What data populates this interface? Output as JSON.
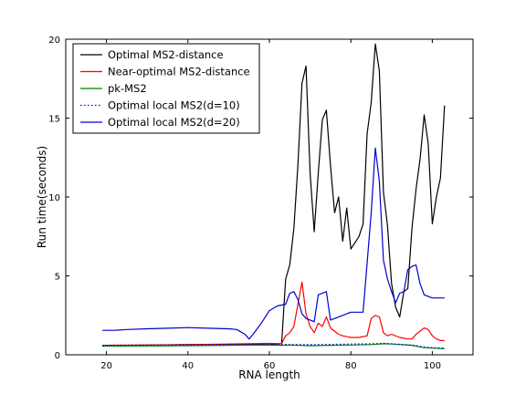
{
  "chart_data": {
    "type": "line",
    "xlabel": "RNA length",
    "ylabel": "Run time(seconds)",
    "xlim": [
      10,
      110
    ],
    "ylim": [
      0,
      20
    ],
    "xticks": [
      20,
      40,
      60,
      80,
      100
    ],
    "yticks": [
      0,
      5,
      10,
      15,
      20
    ],
    "grid": false,
    "legend_position": "top-left",
    "series": [
      {
        "name": "Optimal MS2-distance",
        "color": "#000000",
        "style": "solid",
        "points": [
          [
            19,
            0.55
          ],
          [
            25,
            0.6
          ],
          [
            30,
            0.62
          ],
          [
            40,
            0.65
          ],
          [
            50,
            0.65
          ],
          [
            55,
            0.66
          ],
          [
            60,
            0.65
          ],
          [
            63,
            0.7
          ],
          [
            64,
            4.8
          ],
          [
            65,
            5.7
          ],
          [
            66,
            8.0
          ],
          [
            67,
            12.0
          ],
          [
            68,
            17.2
          ],
          [
            69,
            18.3
          ],
          [
            70,
            11.5
          ],
          [
            71,
            7.8
          ],
          [
            72,
            11.5
          ],
          [
            73,
            14.9
          ],
          [
            74,
            15.5
          ],
          [
            75,
            12.0
          ],
          [
            76,
            9.0
          ],
          [
            77,
            10.0
          ],
          [
            78,
            7.2
          ],
          [
            79,
            9.3
          ],
          [
            80,
            6.7
          ],
          [
            82,
            7.5
          ],
          [
            83,
            8.3
          ],
          [
            84,
            14.0
          ],
          [
            85,
            16.0
          ],
          [
            86,
            19.7
          ],
          [
            87,
            18.0
          ],
          [
            88,
            10.3
          ],
          [
            89,
            8.2
          ],
          [
            90,
            4.5
          ],
          [
            91,
            3.0
          ],
          [
            92,
            2.4
          ],
          [
            93,
            4.0
          ],
          [
            94,
            4.2
          ],
          [
            95,
            8.0
          ],
          [
            96,
            10.5
          ],
          [
            97,
            12.4
          ],
          [
            98,
            15.2
          ],
          [
            99,
            13.4
          ],
          [
            100,
            8.3
          ],
          [
            101,
            10.0
          ],
          [
            102,
            11.2
          ],
          [
            103,
            15.8
          ]
        ]
      },
      {
        "name": "Near-optimal MS2-distance",
        "color": "#ff0000",
        "style": "solid",
        "points": [
          [
            19,
            0.6
          ],
          [
            30,
            0.62
          ],
          [
            40,
            0.65
          ],
          [
            50,
            0.68
          ],
          [
            55,
            0.7
          ],
          [
            60,
            0.72
          ],
          [
            63,
            0.7
          ],
          [
            64,
            1.2
          ],
          [
            65,
            1.4
          ],
          [
            66,
            1.8
          ],
          [
            67,
            3.2
          ],
          [
            68,
            4.6
          ],
          [
            69,
            2.6
          ],
          [
            70,
            1.8
          ],
          [
            71,
            1.4
          ],
          [
            72,
            2.0
          ],
          [
            73,
            1.8
          ],
          [
            74,
            2.4
          ],
          [
            75,
            1.7
          ],
          [
            76,
            1.5
          ],
          [
            77,
            1.3
          ],
          [
            78,
            1.2
          ],
          [
            80,
            1.1
          ],
          [
            82,
            1.1
          ],
          [
            84,
            1.2
          ],
          [
            85,
            2.3
          ],
          [
            86,
            2.5
          ],
          [
            87,
            2.4
          ],
          [
            88,
            1.4
          ],
          [
            89,
            1.2
          ],
          [
            90,
            1.3
          ],
          [
            92,
            1.1
          ],
          [
            94,
            1.0
          ],
          [
            95,
            1.0
          ],
          [
            96,
            1.3
          ],
          [
            98,
            1.7
          ],
          [
            99,
            1.6
          ],
          [
            100,
            1.2
          ],
          [
            101,
            1.0
          ],
          [
            102,
            0.9
          ],
          [
            103,
            0.9
          ]
        ]
      },
      {
        "name": "pk-MS2",
        "color": "#008000",
        "style": "solid",
        "points": [
          [
            19,
            0.55
          ],
          [
            30,
            0.56
          ],
          [
            40,
            0.58
          ],
          [
            50,
            0.6
          ],
          [
            60,
            0.62
          ],
          [
            63,
            0.6
          ],
          [
            65,
            0.62
          ],
          [
            70,
            0.58
          ],
          [
            75,
            0.6
          ],
          [
            80,
            0.62
          ],
          [
            85,
            0.65
          ],
          [
            88,
            0.7
          ],
          [
            90,
            0.68
          ],
          [
            95,
            0.6
          ],
          [
            98,
            0.45
          ],
          [
            100,
            0.42
          ],
          [
            103,
            0.38
          ]
        ]
      },
      {
        "name": "Optimal local MS2(d=10)",
        "color": "#0000ff",
        "style": "dotted",
        "points": [
          [
            19,
            0.6
          ],
          [
            30,
            0.62
          ],
          [
            40,
            0.65
          ],
          [
            50,
            0.66
          ],
          [
            60,
            0.68
          ],
          [
            63,
            0.66
          ],
          [
            70,
            0.64
          ],
          [
            75,
            0.66
          ],
          [
            80,
            0.68
          ],
          [
            85,
            0.7
          ],
          [
            88,
            0.72
          ],
          [
            90,
            0.7
          ],
          [
            95,
            0.62
          ],
          [
            98,
            0.5
          ],
          [
            100,
            0.45
          ],
          [
            103,
            0.42
          ]
        ]
      },
      {
        "name": "Optimal local MS2(d=20)",
        "color": "#0000cc",
        "style": "solid",
        "points": [
          [
            19,
            1.55
          ],
          [
            22,
            1.55
          ],
          [
            25,
            1.6
          ],
          [
            30,
            1.65
          ],
          [
            35,
            1.68
          ],
          [
            40,
            1.72
          ],
          [
            45,
            1.68
          ],
          [
            50,
            1.65
          ],
          [
            52,
            1.6
          ],
          [
            54,
            1.3
          ],
          [
            55,
            1.0
          ],
          [
            56,
            1.3
          ],
          [
            58,
            2.0
          ],
          [
            60,
            2.8
          ],
          [
            62,
            3.1
          ],
          [
            64,
            3.2
          ],
          [
            65,
            3.9
          ],
          [
            66,
            4.0
          ],
          [
            67,
            3.5
          ],
          [
            68,
            2.6
          ],
          [
            69,
            2.3
          ],
          [
            70,
            2.2
          ],
          [
            71,
            2.1
          ],
          [
            72,
            3.8
          ],
          [
            73,
            3.9
          ],
          [
            74,
            4.0
          ],
          [
            75,
            2.2
          ],
          [
            76,
            2.3
          ],
          [
            78,
            2.5
          ],
          [
            80,
            2.7
          ],
          [
            83,
            2.7
          ],
          [
            84,
            5.8
          ],
          [
            85,
            9.0
          ],
          [
            86,
            13.1
          ],
          [
            87,
            11.0
          ],
          [
            88,
            6.0
          ],
          [
            89,
            4.8
          ],
          [
            90,
            4.0
          ],
          [
            91,
            3.3
          ],
          [
            92,
            3.9
          ],
          [
            93,
            4.0
          ],
          [
            94,
            5.4
          ],
          [
            95,
            5.6
          ],
          [
            96,
            5.7
          ],
          [
            97,
            4.5
          ],
          [
            98,
            3.8
          ],
          [
            100,
            3.6
          ],
          [
            103,
            3.6
          ]
        ]
      }
    ]
  }
}
